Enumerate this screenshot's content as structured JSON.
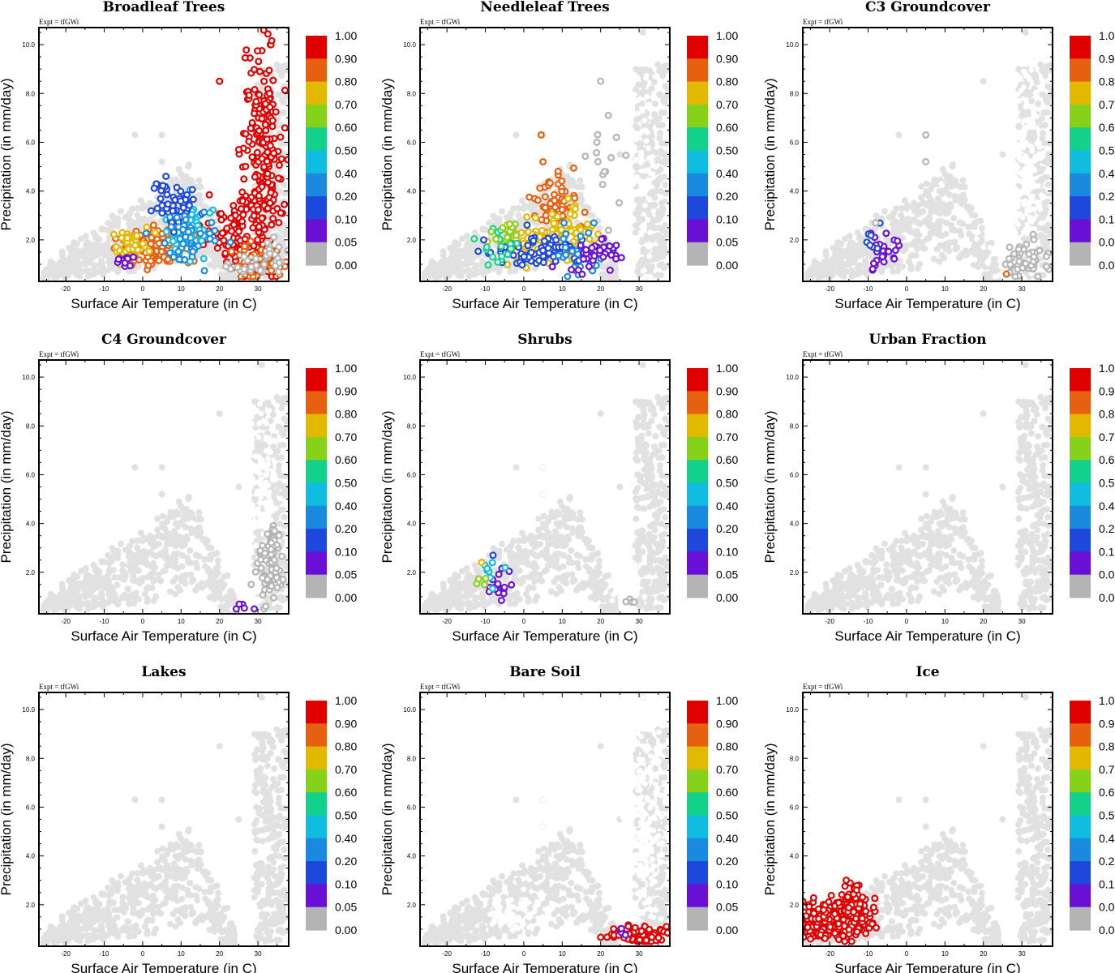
{
  "chart_data": {
    "type": "scatter",
    "experiment_label": "Expt = tfGWi",
    "xlabel": "Surface Air Temperature (in C)",
    "ylabel": "Precipitation (in mm/day)",
    "xlim": [
      -27,
      38
    ],
    "ylim": [
      0.3,
      10.7
    ],
    "x_ticks": [
      -20,
      -10,
      0,
      10,
      20,
      30
    ],
    "x_tick_labels": [
      "-20",
      "-10",
      "0",
      "10",
      "20",
      "30"
    ],
    "y_ticks": [
      2,
      4,
      6,
      8,
      10
    ],
    "y_tick_labels": [
      "2.0",
      "4.0",
      "6.0",
      "8.0",
      "10.0"
    ],
    "colorbar": {
      "labels": [
        "1.00",
        "0.90",
        "0.80",
        "0.70",
        "0.60",
        "0.50",
        "0.40",
        "0.20",
        "0.10",
        "0.05",
        "0.00"
      ],
      "colors": [
        "#e00000",
        "#e66010",
        "#e3b800",
        "#86d11a",
        "#12d18a",
        "#10bde0",
        "#1a8ae0",
        "#1e47db",
        "#6a10d6",
        "#b4b4b4"
      ]
    },
    "background_color": "#e1e1e1",
    "panels": [
      {
        "title": "Broadleaf Trees",
        "clusters": [
          {
            "cx": 31,
            "cy": 5.2,
            "sx": 2.6,
            "sy": 2.3,
            "n": 240,
            "level": 0
          },
          {
            "cx": 24,
            "cy": 2.3,
            "sx": 3.5,
            "sy": 0.8,
            "n": 80,
            "level": 0
          },
          {
            "cx": 30,
            "cy": 1.1,
            "sx": 4.5,
            "sy": 0.4,
            "n": 50,
            "level": 1
          },
          {
            "cx": 2,
            "cy": 1.7,
            "sx": 4.5,
            "sy": 0.35,
            "n": 140,
            "level": 1
          },
          {
            "cx": -3,
            "cy": 1.9,
            "sx": 2.5,
            "sy": 0.3,
            "n": 35,
            "level": 2
          },
          {
            "cx": 11,
            "cy": 2.4,
            "sx": 3.0,
            "sy": 0.6,
            "n": 80,
            "level": 5
          },
          {
            "cx": 8,
            "cy": 3.5,
            "sx": 3.0,
            "sy": 0.5,
            "n": 60,
            "level": 7
          },
          {
            "cx": 12,
            "cy": 1.9,
            "sx": 4.0,
            "sy": 0.5,
            "n": 45,
            "level": 6
          },
          {
            "cx": -5,
            "cy": 1.1,
            "sx": 1.2,
            "sy": 0.2,
            "n": 10,
            "level": 8
          },
          {
            "cx": 34,
            "cy": 1.5,
            "sx": 2.0,
            "sy": 0.4,
            "n": 20,
            "level": 9
          },
          {
            "cx": 26,
            "cy": 0.9,
            "sx": 2.5,
            "sy": 0.2,
            "n": 15,
            "level": 9
          }
        ],
        "singles": [
          [
            20,
            8.5,
            0
          ],
          [
            30.5,
            8.9,
            0
          ],
          [
            31.5,
            10.6,
            0
          ],
          [
            28.5,
            6.8,
            0
          ],
          [
            25,
            5.7,
            0
          ],
          [
            33,
            8.0,
            0
          ]
        ]
      },
      {
        "title": "Needleleaf Trees",
        "clusters": [
          {
            "cx": 8,
            "cy": 3.5,
            "sx": 3.0,
            "sy": 0.6,
            "n": 55,
            "level": 1
          },
          {
            "cx": 12,
            "cy": 2.2,
            "sx": 3.5,
            "sy": 0.5,
            "n": 60,
            "level": 2
          },
          {
            "cx": 1,
            "cy": 1.9,
            "sx": 4.5,
            "sy": 0.4,
            "n": 60,
            "level": 2
          },
          {
            "cx": 4,
            "cy": 1.5,
            "sx": 7.0,
            "sy": 0.3,
            "n": 90,
            "level": 7
          },
          {
            "cx": -6,
            "cy": 1.8,
            "sx": 2.5,
            "sy": 0.4,
            "n": 20,
            "level": 4
          },
          {
            "cx": -4,
            "cy": 2.3,
            "sx": 2.0,
            "sy": 0.2,
            "n": 12,
            "level": 3
          },
          {
            "cx": 14,
            "cy": 1.6,
            "sx": 3.5,
            "sy": 0.5,
            "n": 30,
            "level": 6
          },
          {
            "cx": 19,
            "cy": 1.4,
            "sx": 3.5,
            "sy": 0.4,
            "n": 35,
            "level": 8
          },
          {
            "cx": 21,
            "cy": 4.5,
            "sx": 3.0,
            "sy": 1.5,
            "n": 12,
            "level": 9
          },
          {
            "cx": 31,
            "cy": 5.5,
            "sx": 2.0,
            "sy": 2.5,
            "n": 60,
            "level": 10
          }
        ],
        "singles": [
          [
            4.5,
            6.3,
            1
          ],
          [
            5,
            5.2,
            1
          ],
          [
            20,
            8.5,
            9
          ],
          [
            19,
            6.0,
            9
          ],
          [
            22,
            7.1,
            9
          ],
          [
            21,
            4.8,
            9
          ]
        ]
      },
      {
        "title": "C3 Groundcover",
        "clusters": [
          {
            "cx": 31,
            "cy": 5.0,
            "sx": 2.5,
            "sy": 2.0,
            "n": 180,
            "level": 10
          },
          {
            "cx": 26,
            "cy": 1.2,
            "sx": 3.0,
            "sy": 0.5,
            "n": 40,
            "level": 10
          },
          {
            "cx": 31,
            "cy": 1.2,
            "sx": 3.0,
            "sy": 0.4,
            "n": 45,
            "level": 9
          },
          {
            "cx": -7,
            "cy": 1.6,
            "sx": 2.0,
            "sy": 0.4,
            "n": 25,
            "level": 8
          },
          {
            "cx": -9,
            "cy": 2.0,
            "sx": 1.5,
            "sy": 0.4,
            "n": 6,
            "level": 7
          }
        ],
        "singles": [
          [
            5,
            6.3,
            9
          ],
          [
            5,
            5.2,
            9
          ],
          [
            26,
            0.6,
            1
          ],
          [
            -8,
            2.7,
            9
          ],
          [
            9,
            4.3,
            10
          ],
          [
            30.5,
            8.9,
            10
          ]
        ]
      },
      {
        "title": "C4 Groundcover",
        "clusters": [
          {
            "cx": 31.5,
            "cy": 5.5,
            "sx": 1.8,
            "sy": 1.8,
            "n": 110,
            "level": 10
          },
          {
            "cx": 27,
            "cy": 1.3,
            "sx": 2.5,
            "sy": 0.5,
            "n": 40,
            "level": 10
          },
          {
            "cx": 33,
            "cy": 1.9,
            "sx": 2.5,
            "sy": 0.7,
            "n": 55,
            "level": 9
          },
          {
            "cx": 34,
            "cy": 3.3,
            "sx": 1.0,
            "sy": 0.5,
            "n": 20,
            "level": 9
          },
          {
            "cx": 25.5,
            "cy": 0.6,
            "sx": 1.0,
            "sy": 0.1,
            "n": 5,
            "level": 8
          }
        ],
        "singles": [
          [
            30.5,
            8.9,
            10
          ],
          [
            31.5,
            8.2,
            10
          ]
        ]
      },
      {
        "title": "Shrubs",
        "clusters": [
          {
            "cx": -7,
            "cy": 1.4,
            "sx": 1.5,
            "sy": 0.3,
            "n": 18,
            "level": 8
          },
          {
            "cx": -9,
            "cy": 2.0,
            "sx": 1.5,
            "sy": 0.3,
            "n": 8,
            "level": 5
          },
          {
            "cx": -10,
            "cy": 1.5,
            "sx": 1.0,
            "sy": 0.2,
            "n": 4,
            "level": 3
          },
          {
            "cx": 26,
            "cy": 1.0,
            "sx": 3.0,
            "sy": 0.3,
            "n": 14,
            "level": 10
          },
          {
            "cx": 28,
            "cy": 0.8,
            "sx": 2.0,
            "sy": 0.1,
            "n": 6,
            "level": 9
          }
        ],
        "singles": [
          [
            5,
            6.3,
            10
          ],
          [
            5,
            5.2,
            10
          ],
          [
            -8,
            2.7,
            7
          ],
          [
            -11,
            2.4,
            2
          ],
          [
            29,
            2.3,
            10
          ]
        ]
      },
      {
        "title": "Urban Fraction",
        "clusters": [],
        "singles": []
      },
      {
        "title": "Lakes",
        "clusters": [],
        "singles": []
      },
      {
        "title": "Bare Soil",
        "clusters": [
          {
            "cx": 31,
            "cy": 5.0,
            "sx": 2.5,
            "sy": 2.2,
            "n": 220,
            "level": 10
          },
          {
            "cx": -3,
            "cy": 1.6,
            "sx": 4.0,
            "sy": 0.35,
            "n": 60,
            "level": 10
          },
          {
            "cx": 31,
            "cy": 0.75,
            "sx": 3.5,
            "sy": 0.2,
            "n": 90,
            "level": 0
          },
          {
            "cx": 25.5,
            "cy": 0.9,
            "sx": 1.0,
            "sy": 0.1,
            "n": 5,
            "level": 8
          }
        ],
        "singles": [
          [
            5,
            6.3,
            10
          ],
          [
            5,
            5.2,
            10
          ],
          [
            31,
            10.5,
            10
          ],
          [
            30.5,
            8.9,
            10
          ]
        ]
      },
      {
        "title": "Ice",
        "clusters": [
          {
            "cx": -19,
            "cy": 1.3,
            "sx": 4.5,
            "sy": 0.4,
            "n": 300,
            "level": 0
          },
          {
            "cx": -14,
            "cy": 2.0,
            "sx": 1.5,
            "sy": 0.4,
            "n": 60,
            "level": 0
          }
        ],
        "singles": [
          [
            -13,
            2.6,
            0
          ],
          [
            -25,
            0.6,
            0
          ]
        ]
      }
    ]
  }
}
